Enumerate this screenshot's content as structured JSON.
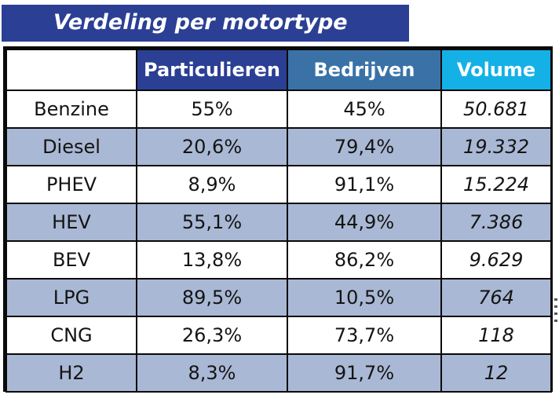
{
  "title": "Verdeling per motortype",
  "table": {
    "headers": {
      "particulieren": "Particulieren",
      "bedrijven": "Bedrijven",
      "volume": "Volume"
    },
    "rows": [
      {
        "type": "Benzine",
        "particulieren": "55%",
        "bedrijven": "45%",
        "volume": "50.681"
      },
      {
        "type": "Diesel",
        "particulieren": "20,6%",
        "bedrijven": "79,4%",
        "volume": "19.332"
      },
      {
        "type": "PHEV",
        "particulieren": "8,9%",
        "bedrijven": "91,1%",
        "volume": "15.224"
      },
      {
        "type": "HEV",
        "particulieren": "55,1%",
        "bedrijven": "44,9%",
        "volume": "7.386"
      },
      {
        "type": "BEV",
        "particulieren": "13,8%",
        "bedrijven": "86,2%",
        "volume": "9.629"
      },
      {
        "type": "LPG",
        "particulieren": "89,5%",
        "bedrijven": "10,5%",
        "volume": "764"
      },
      {
        "type": "CNG",
        "particulieren": "26,3%",
        "bedrijven": "73,7%",
        "volume": "118"
      },
      {
        "type": "H2",
        "particulieren": "8,3%",
        "bedrijven": "91,7%",
        "volume": "12"
      }
    ]
  },
  "colors": {
    "title_bg": "#2b3f94",
    "particulieren_header": "#2b3f94",
    "bedrijven_header": "#3a72a8",
    "volume_header": "#14b1e7",
    "band_row": "#a9b8d4"
  }
}
